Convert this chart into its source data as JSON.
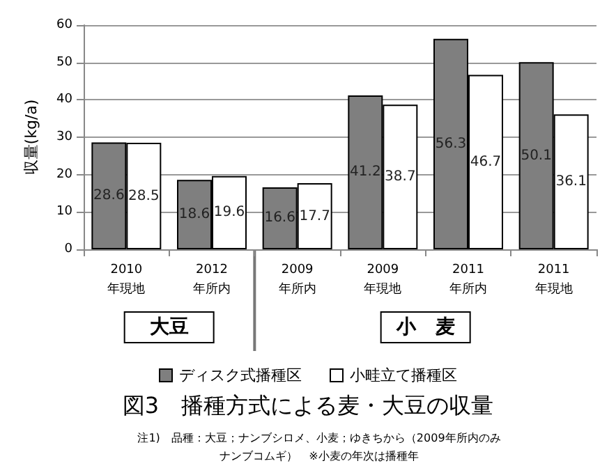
{
  "chart_data": {
    "type": "bar",
    "title": "図3　播種方式による麦・大豆の収量",
    "ylabel": "収量(kg/a)",
    "categories": [
      "2010年現地",
      "2012年所内",
      "2009年所内",
      "2009年現地",
      "2011年所内",
      "2011年現地"
    ],
    "series": [
      {
        "name": "ディスク式播種区",
        "color": "#7f7f7f",
        "values": [
          28.6,
          18.6,
          16.6,
          41.2,
          56.3,
          50.1
        ]
      },
      {
        "name": "小畦立て播種区",
        "color": "#ffffff",
        "values": [
          28.5,
          19.6,
          17.7,
          38.7,
          46.7,
          36.1
        ]
      }
    ],
    "ylim": [
      0,
      60
    ],
    "yticks": [
      0,
      10,
      20,
      30,
      40,
      50,
      60
    ],
    "grid": "y",
    "legend": "bottom",
    "data_labels": true,
    "annotations": [
      "大豆",
      "小　麦",
      "注1)　品種：大豆；ナンブシロメ、小麦；ゆきちから（2009年所内のみナンブコムギ）　※小麦の年次は播種年"
    ]
  }
}
